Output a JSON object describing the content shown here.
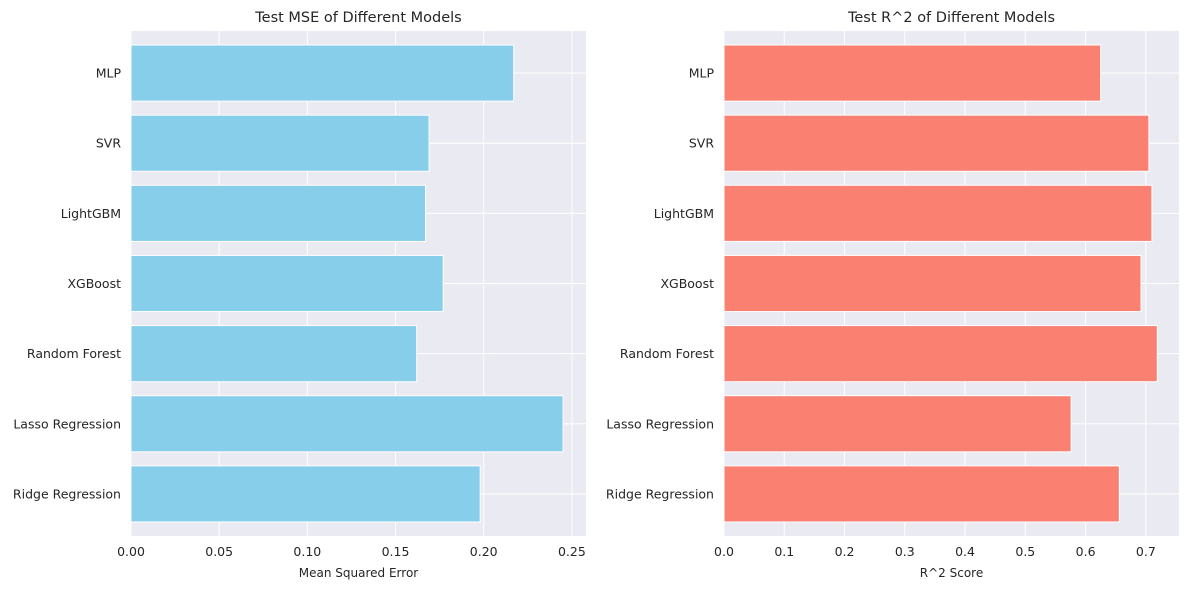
{
  "chart_data": [
    {
      "type": "bar",
      "orientation": "horizontal",
      "title": "Test MSE of Different Models",
      "xlabel": "Mean Squared Error",
      "ylabel": "",
      "categories": [
        "Ridge Regression",
        "Lasso Regression",
        "Random Forest",
        "XGBoost",
        "LightGBM",
        "SVR",
        "MLP"
      ],
      "values": [
        0.198,
        0.245,
        0.162,
        0.177,
        0.167,
        0.169,
        0.217
      ],
      "xlim": [
        0,
        0.258
      ],
      "xticks": [
        0.0,
        0.05,
        0.1,
        0.15,
        0.2,
        0.25
      ],
      "xtick_labels": [
        "0.00",
        "0.05",
        "0.10",
        "0.15",
        "0.20",
        "0.25"
      ],
      "color": "#87ceeb",
      "grid": true
    },
    {
      "type": "bar",
      "orientation": "horizontal",
      "title": "Test R^2 of Different Models",
      "xlabel": "R^2 Score",
      "ylabel": "",
      "categories": [
        "Ridge Regression",
        "Lasso Regression",
        "Random Forest",
        "XGBoost",
        "LightGBM",
        "SVR",
        "MLP"
      ],
      "values": [
        0.656,
        0.576,
        0.719,
        0.692,
        0.71,
        0.705,
        0.625
      ],
      "xlim": [
        0,
        0.755
      ],
      "xticks": [
        0.0,
        0.1,
        0.2,
        0.3,
        0.4,
        0.5,
        0.6,
        0.7
      ],
      "xtick_labels": [
        "0.0",
        "0.1",
        "0.2",
        "0.3",
        "0.4",
        "0.5",
        "0.6",
        "0.7"
      ],
      "color": "#fa8072",
      "grid": true
    }
  ]
}
